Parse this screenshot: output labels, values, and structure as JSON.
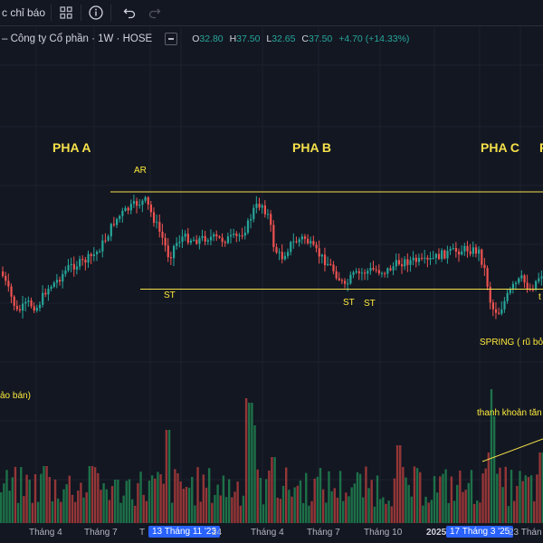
{
  "toolbar": {
    "indicators_label": "c chỉ báo"
  },
  "legend": {
    "symbol": "– Công ty Cổ phần · 1W · HOSE",
    "o_key": "O",
    "o_val": "32.80",
    "h_key": "H",
    "h_val": "37.50",
    "l_key": "L",
    "l_val": "32.65",
    "c_key": "C",
    "c_val": "37.50",
    "change": "+4.70 (+14.33%)"
  },
  "annotations": {
    "pha_a": "PHA A",
    "pha_b": "PHA B",
    "pha_c": "PHA C",
    "ar": "AR",
    "st1": "ST",
    "st2": "ST",
    "st3": "ST",
    "spring": "SPRING ( rũ bỏ",
    "right_t": "t",
    "ban": "ảo bán)",
    "thanh_khoan": "thanh khoản tăn"
  },
  "x_axis": {
    "ticks": [
      "Tháng 4",
      "Tháng 7",
      "13 Tháng 11 '23",
      "24",
      "Tháng 4",
      "Tháng 7",
      "Tháng 10",
      "2025",
      "17 Tháng 3 '25",
      "23 Thán"
    ]
  },
  "colors": {
    "background": "#131722",
    "up": "#26a69a",
    "down": "#ef5350",
    "range_line": "#f5e14a",
    "annotation": "#ffeb3b",
    "highlight": "#2962ff"
  }
}
